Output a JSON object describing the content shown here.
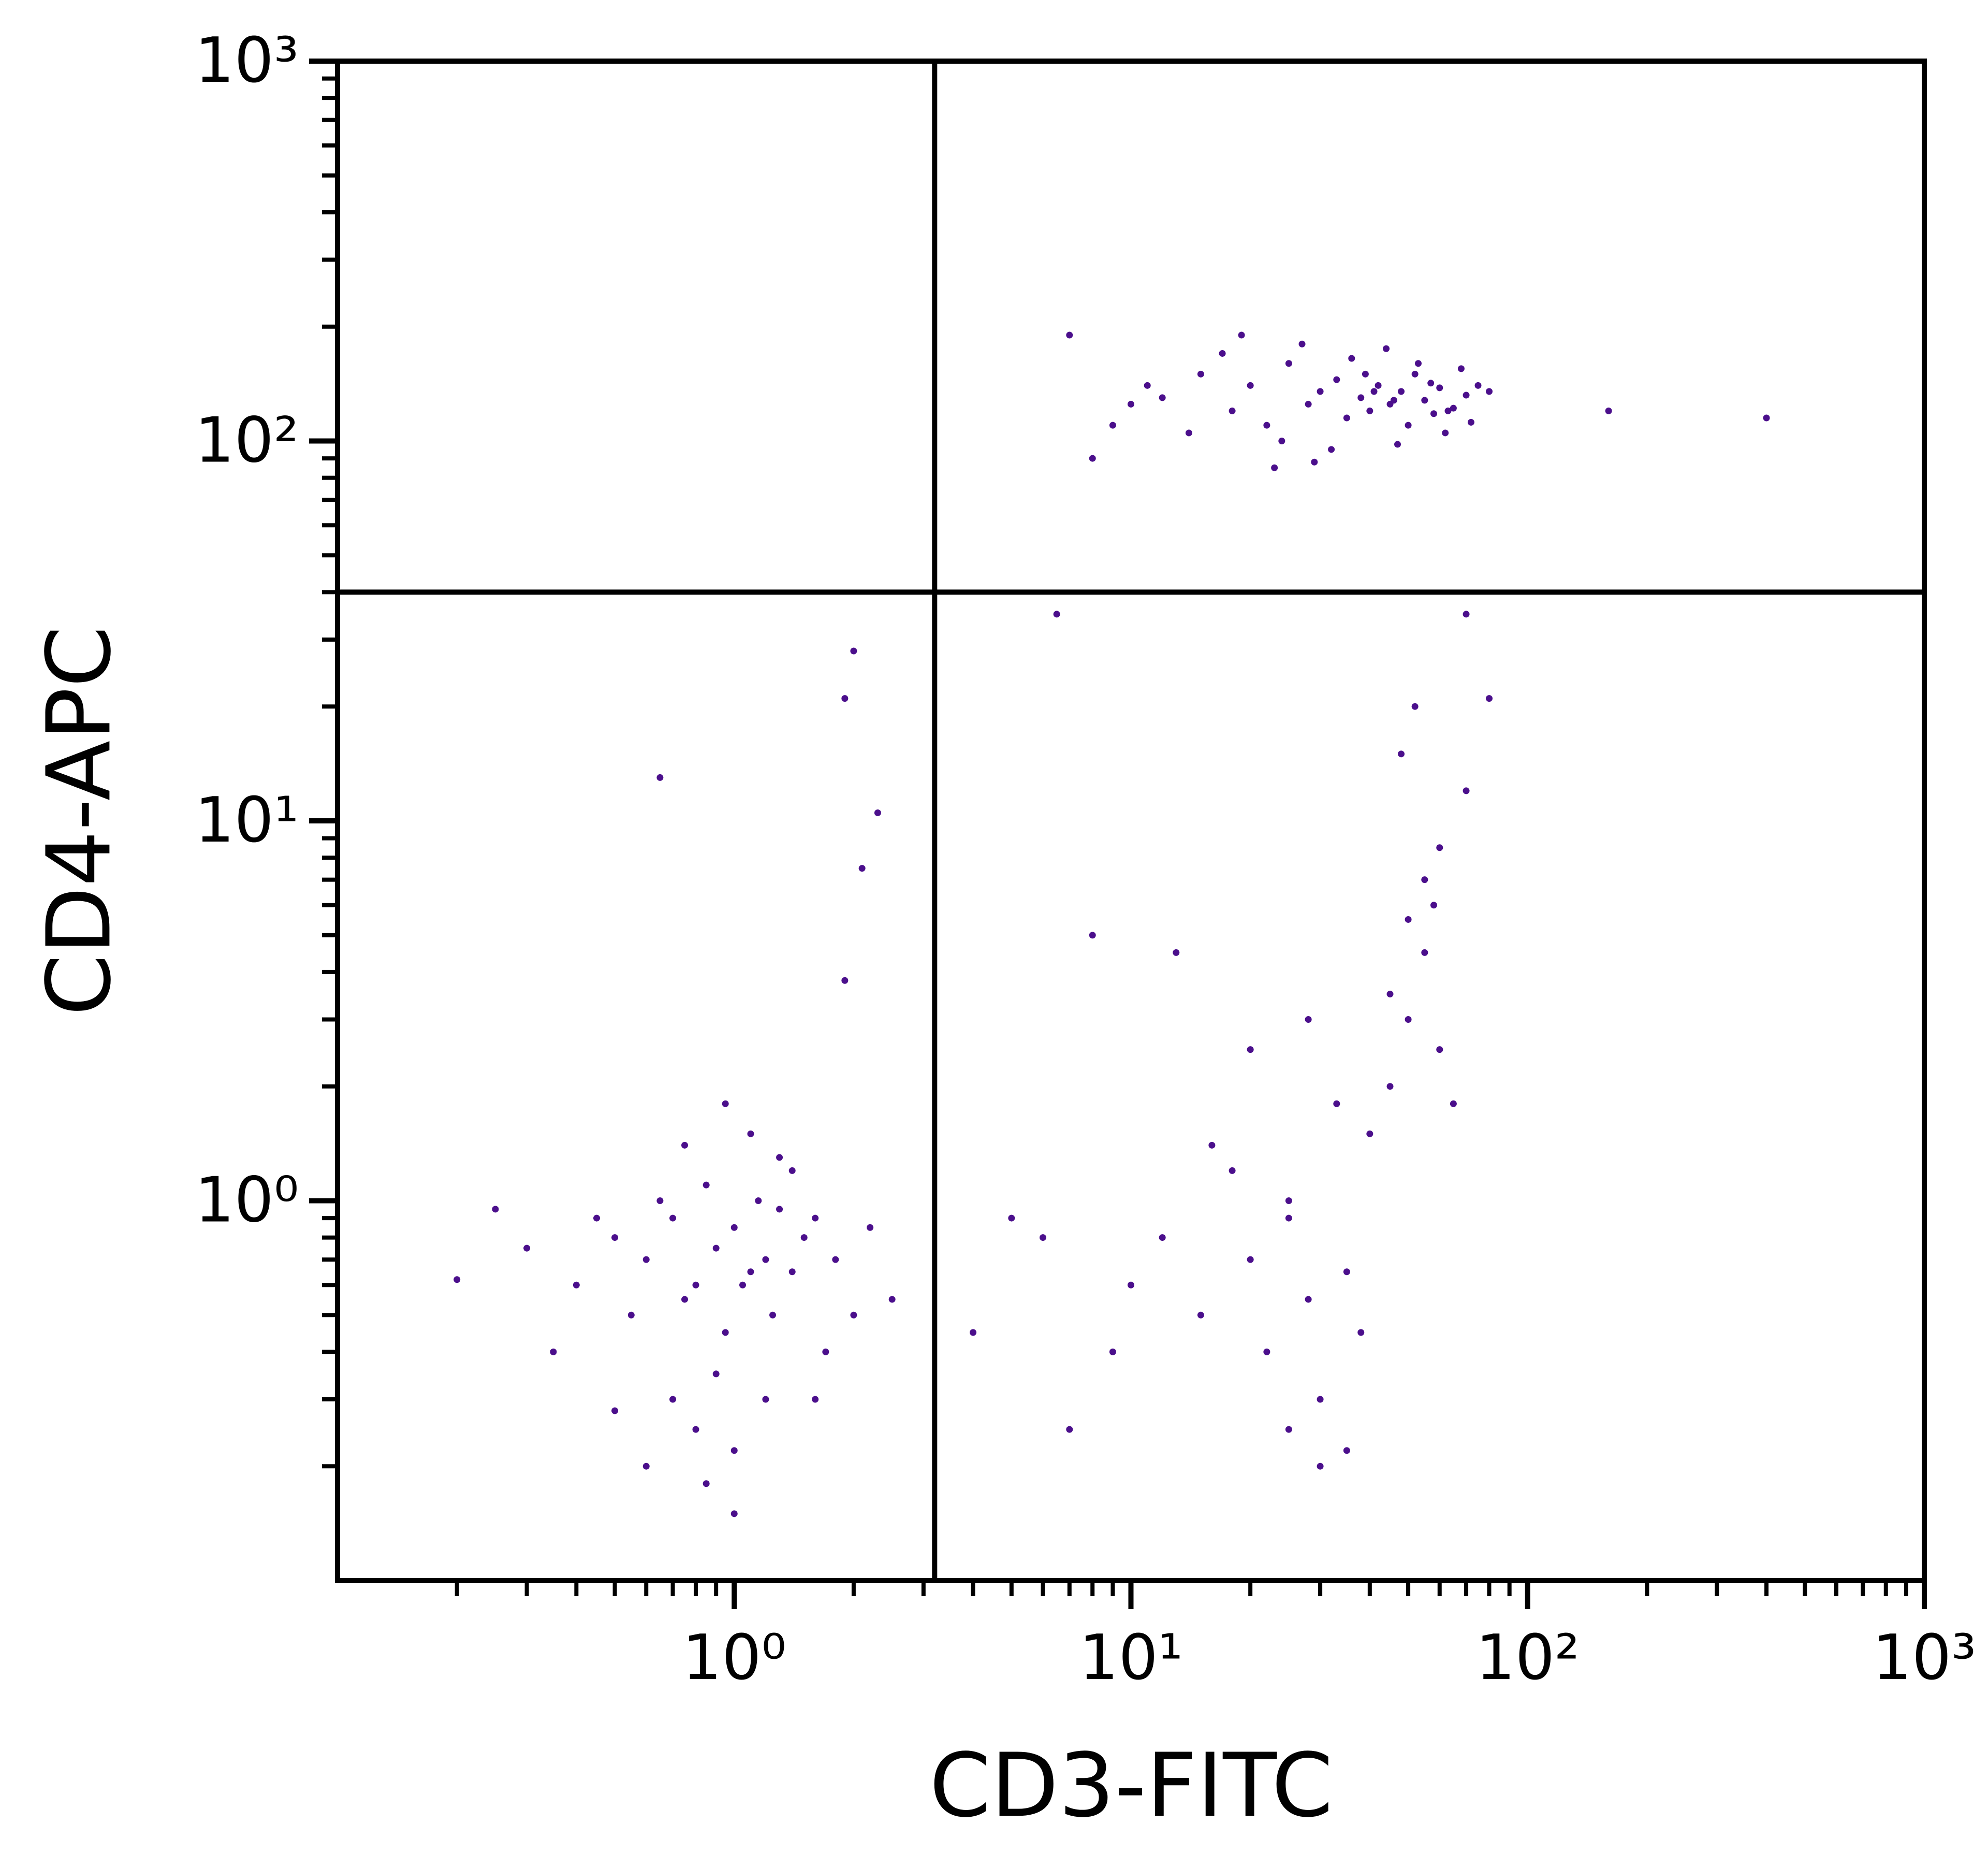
{
  "chart_data": {
    "type": "scatter",
    "xlabel": "CD3-FITC",
    "ylabel": "CD4-APC",
    "xscale": "log",
    "yscale": "log",
    "xlim": [
      0.1,
      1000
    ],
    "ylim": [
      0.1,
      1000
    ],
    "xticks": [
      {
        "value": 1,
        "label": "10⁰"
      },
      {
        "value": 10,
        "label": "10¹"
      },
      {
        "value": 100,
        "label": "10²"
      },
      {
        "value": 1000,
        "label": "10³"
      }
    ],
    "yticks": [
      {
        "value": 1,
        "label": "10⁰"
      },
      {
        "value": 10,
        "label": "10¹"
      },
      {
        "value": 100,
        "label": "10²"
      },
      {
        "value": 1000,
        "label": "10³"
      }
    ],
    "xminorticks": [
      0.2,
      0.3,
      0.4,
      0.5,
      0.6,
      0.7,
      0.8,
      0.9,
      2,
      3,
      4,
      5,
      6,
      7,
      8,
      9,
      20,
      30,
      40,
      50,
      60,
      70,
      80,
      90,
      200,
      300,
      400,
      500,
      600,
      700,
      800,
      900
    ],
    "yminorticks": [
      0.2,
      0.3,
      0.4,
      0.5,
      0.6,
      0.7,
      0.8,
      0.9,
      2,
      3,
      4,
      5,
      6,
      7,
      8,
      9,
      20,
      30,
      40,
      50,
      60,
      70,
      80,
      90,
      200,
      300,
      400,
      500,
      600,
      700,
      800,
      900
    ],
    "gates": {
      "x": 3.2,
      "y": 40
    },
    "color": "#4b0f8c",
    "x": [
      12,
      15,
      18,
      20,
      22,
      25,
      28,
      30,
      33,
      35,
      38,
      40,
      42,
      45,
      48,
      50,
      52,
      55,
      58,
      60,
      65,
      70,
      75,
      14,
      17,
      24,
      27,
      32,
      36,
      44,
      47,
      53,
      62,
      68,
      72,
      10,
      11,
      19,
      23,
      29,
      39,
      41,
      46,
      57,
      63,
      9,
      8,
      7,
      80,
      160,
      400,
      0.5,
      0.6,
      0.7,
      0.8,
      0.9,
      1.0,
      1.1,
      1.2,
      1.3,
      1.5,
      0.55,
      0.65,
      0.75,
      0.85,
      0.95,
      1.05,
      1.15,
      1.25,
      1.4,
      1.6,
      0.45,
      0.4,
      0.35,
      0.3,
      0.2,
      0.25,
      1.8,
      2.0,
      2.2,
      2.5,
      0.7,
      0.8,
      0.9,
      1.0,
      1.2,
      0.6,
      0.5,
      0.75,
      1.1,
      1.3,
      0.85,
      1.0,
      0.95,
      1.7,
      1.9,
      2.1,
      2.3,
      1.4,
      0.65,
      1.6,
      10,
      12,
      15,
      18,
      20,
      22,
      25,
      28,
      30,
      35,
      40,
      45,
      50,
      55,
      60,
      65,
      25,
      30,
      35,
      45,
      50,
      55,
      60,
      70,
      48,
      52,
      58,
      8,
      9,
      6,
      5,
      4,
      7,
      20,
      25,
      33,
      38,
      28,
      16,
      13,
      2.0,
      1.9,
      80,
      70,
      6.5
    ],
    "values": [
      130,
      150,
      120,
      140,
      110,
      160,
      125,
      135,
      145,
      115,
      130,
      120,
      140,
      125,
      135,
      110,
      150,
      128,
      118,
      138,
      122,
      132,
      140,
      105,
      170,
      100,
      180,
      95,
      165,
      175,
      98,
      160,
      105,
      155,
      112,
      125,
      140,
      190,
      85,
      88,
      150,
      135,
      128,
      142,
      120,
      110,
      90,
      190,
      135,
      120,
      115,
      0.8,
      0.7,
      0.9,
      0.6,
      0.75,
      0.85,
      0.65,
      0.7,
      0.95,
      0.8,
      0.5,
      1.0,
      0.55,
      1.1,
      0.45,
      0.6,
      1.0,
      0.5,
      0.65,
      0.9,
      0.9,
      0.6,
      0.4,
      0.75,
      0.62,
      0.95,
      0.7,
      0.5,
      0.85,
      0.55,
      0.3,
      0.25,
      0.35,
      0.22,
      0.3,
      0.2,
      0.28,
      1.4,
      1.5,
      1.3,
      0.18,
      0.15,
      1.8,
      0.4,
      3.8,
      7.5,
      10.5,
      1.2,
      13,
      0.3,
      0.6,
      0.8,
      0.5,
      1.2,
      0.7,
      0.4,
      0.9,
      0.55,
      0.3,
      0.65,
      1.5,
      2.0,
      3.0,
      4.5,
      2.5,
      1.8,
      0.25,
      0.2,
      0.22,
      3.5,
      5.5,
      7.0,
      8.5,
      12,
      15,
      20,
      6,
      5,
      0.4,
      0.8,
      0.9,
      0.45,
      0.25,
      2.5,
      1.0,
      1.8,
      0.45,
      3.0,
      1.4,
      4.5,
      28,
      21,
      21,
      35,
      35
    ]
  }
}
